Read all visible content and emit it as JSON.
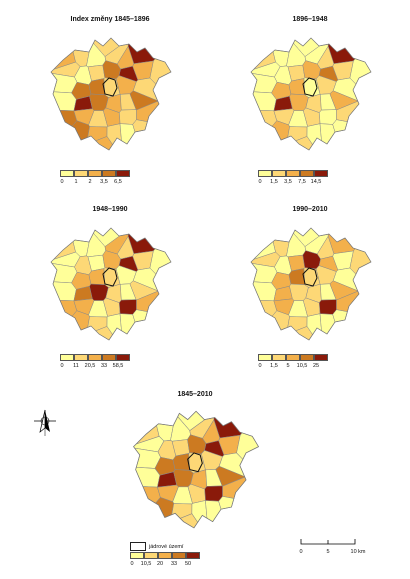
{
  "colors": {
    "c1": "#ffff99",
    "c2": "#fdd876",
    "c3": "#f3b04b",
    "c4": "#cc7a21",
    "c5": "#8a1a0a",
    "border": "#8a8a8a"
  },
  "panels": [
    {
      "title": "Index změny 1845–1896",
      "ticks": [
        "0",
        "1",
        "2",
        "3,5",
        "6,5"
      ],
      "pattern": [
        2,
        3,
        2,
        1,
        2,
        3,
        5,
        2,
        1,
        2,
        4,
        5,
        3,
        2,
        1,
        4,
        4,
        2,
        3,
        2,
        1,
        5,
        4,
        3,
        2,
        4,
        4,
        3,
        2,
        3,
        2,
        3,
        4,
        3,
        2,
        1,
        2,
        3,
        1,
        2
      ]
    },
    {
      "title": "1896–1948",
      "ticks": [
        "0",
        "1,5",
        "3,5",
        "7,5",
        "14,5"
      ],
      "pattern": [
        1,
        2,
        1,
        1,
        1,
        2,
        5,
        1,
        1,
        2,
        3,
        4,
        2,
        1,
        1,
        3,
        3,
        1,
        2,
        1,
        1,
        5,
        3,
        2,
        1,
        3,
        2,
        2,
        1,
        2,
        1,
        2,
        3,
        2,
        1,
        1,
        1,
        2,
        1,
        1
      ]
    },
    {
      "title": "1948–1990",
      "ticks": [
        "0",
        "11",
        "20,5",
        "33",
        "58,5"
      ],
      "pattern": [
        1,
        2,
        1,
        1,
        3,
        2,
        5,
        1,
        2,
        1,
        3,
        5,
        2,
        1,
        1,
        3,
        3,
        2,
        1,
        1,
        1,
        4,
        5,
        2,
        1,
        2,
        3,
        3,
        1,
        2,
        5,
        3,
        3,
        2,
        1,
        1,
        1,
        2,
        1,
        1
      ]
    },
    {
      "title": "1990–2010",
      "ticks": [
        "0",
        "1,5",
        "5",
        "10,5",
        "25"
      ],
      "pattern": [
        1,
        1,
        2,
        1,
        1,
        2,
        3,
        2,
        1,
        3,
        5,
        3,
        1,
        2,
        1,
        3,
        4,
        2,
        2,
        1,
        1,
        3,
        2,
        2,
        1,
        3,
        2,
        3,
        1,
        2,
        5,
        3,
        2,
        2,
        1,
        1,
        1,
        2,
        1,
        1
      ]
    },
    {
      "title": "1845–2010",
      "ticks": [
        "0",
        "10,5",
        "20",
        "33",
        "50"
      ],
      "pattern": [
        1,
        2,
        1,
        1,
        2,
        3,
        5,
        1,
        2,
        2,
        4,
        5,
        3,
        1,
        1,
        4,
        4,
        2,
        2,
        1,
        1,
        5,
        4,
        3,
        1,
        4,
        3,
        3,
        1,
        2,
        5,
        3,
        4,
        2,
        1,
        1,
        1,
        2,
        1,
        1
      ]
    }
  ],
  "core_legend": {
    "label": "jádrové území"
  },
  "scale": {
    "ticks": [
      "0",
      "5",
      "10 km"
    ]
  },
  "north_arrow": {
    "icon": "north-arrow-icon"
  }
}
